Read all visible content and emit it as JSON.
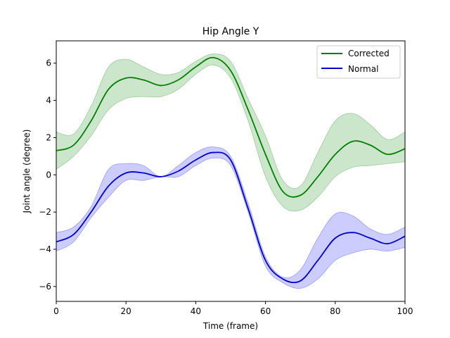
{
  "chart_data": {
    "type": "line",
    "title": "Hip Angle Y",
    "xlabel": "Time (frame)",
    "ylabel": "Joint angle (degree)",
    "xlim": [
      0,
      100
    ],
    "ylim": [
      -6.8,
      7.2
    ],
    "xticks": [
      0,
      20,
      40,
      60,
      80,
      100
    ],
    "yticks": [
      -6,
      -4,
      -2,
      0,
      2,
      4,
      6
    ],
    "grid": false,
    "legend_position": "top-right",
    "x": [
      0,
      5,
      10,
      15,
      20,
      25,
      30,
      35,
      40,
      45,
      50,
      55,
      60,
      65,
      70,
      75,
      80,
      85,
      90,
      95,
      100
    ],
    "series": [
      {
        "name": "Corrected",
        "color": "#008000",
        "band_color": "#008000",
        "mean": [
          1.3,
          1.6,
          2.9,
          4.6,
          5.2,
          5.1,
          4.8,
          5.1,
          5.8,
          6.3,
          5.6,
          3.5,
          1.1,
          -0.9,
          -1.1,
          -0.1,
          1.1,
          1.8,
          1.6,
          1.1,
          1.4
        ],
        "lower": [
          0.3,
          1.0,
          2.1,
          3.5,
          4.1,
          4.2,
          4.2,
          4.6,
          5.4,
          5.9,
          5.2,
          2.9,
          -0.1,
          -1.7,
          -1.9,
          -1.2,
          -0.1,
          0.4,
          0.5,
          0.6,
          0.7
        ],
        "upper": [
          2.3,
          2.2,
          3.7,
          5.8,
          6.2,
          5.8,
          5.4,
          5.5,
          6.1,
          6.5,
          6.1,
          4.1,
          2.1,
          -0.3,
          -0.6,
          1.2,
          2.9,
          3.3,
          2.7,
          1.9,
          2.3
        ]
      },
      {
        "name": "Normal",
        "color": "#0000cc",
        "band_color": "#0000ff",
        "mean": [
          -3.6,
          -3.2,
          -2.0,
          -0.6,
          0.1,
          0.1,
          -0.1,
          0.2,
          0.8,
          1.2,
          0.8,
          -1.8,
          -4.6,
          -5.6,
          -5.7,
          -4.6,
          -3.4,
          -3.1,
          -3.4,
          -3.7,
          -3.3
        ],
        "lower": [
          -4.1,
          -3.6,
          -2.3,
          -1.2,
          -0.3,
          -0.3,
          -0.1,
          -0.1,
          0.5,
          0.9,
          0.5,
          -2.0,
          -4.9,
          -5.8,
          -6.1,
          -5.6,
          -4.6,
          -4.2,
          -4.0,
          -4.1,
          -3.9
        ],
        "upper": [
          -3.1,
          -2.8,
          -1.7,
          0.3,
          0.6,
          0.5,
          -0.1,
          0.5,
          1.2,
          1.5,
          1.0,
          -1.5,
          -4.4,
          -5.5,
          -5.1,
          -3.4,
          -2.1,
          -2.2,
          -2.9,
          -3.2,
          -2.8
        ]
      }
    ]
  }
}
